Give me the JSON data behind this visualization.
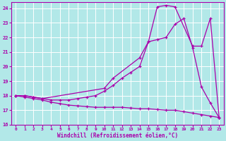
{
  "bg_color": "#b2e8e8",
  "grid_color": "#ffffff",
  "line_color": "#aa00aa",
  "marker": "+",
  "xlabel": "Windchill (Refroidissement éolien,°C)",
  "xlim": [
    -0.5,
    23.5
  ],
  "ylim": [
    16,
    24.4
  ],
  "yticks": [
    16,
    17,
    18,
    19,
    20,
    21,
    22,
    23,
    24
  ],
  "xticks": [
    0,
    1,
    2,
    3,
    4,
    5,
    6,
    7,
    8,
    9,
    10,
    11,
    12,
    13,
    14,
    15,
    16,
    17,
    18,
    19,
    20,
    21,
    22,
    23
  ],
  "line1_x": [
    0,
    1,
    2,
    3,
    4,
    5,
    6,
    7,
    8,
    9,
    10,
    11,
    12,
    13,
    14,
    15,
    16,
    17,
    18,
    19,
    20,
    21,
    22,
    23
  ],
  "line1_y": [
    18.0,
    17.9,
    17.8,
    17.7,
    17.55,
    17.45,
    17.35,
    17.3,
    17.25,
    17.2,
    17.2,
    17.2,
    17.2,
    17.15,
    17.1,
    17.1,
    17.05,
    17.0,
    17.0,
    16.9,
    16.8,
    16.7,
    16.6,
    16.5
  ],
  "line2_x": [
    0,
    1,
    2,
    3,
    4,
    5,
    6,
    7,
    8,
    9,
    10,
    11,
    12,
    13,
    14,
    15,
    16,
    17,
    18,
    19,
    20,
    21,
    22,
    23
  ],
  "line2_y": [
    18.0,
    18.0,
    17.9,
    17.8,
    17.7,
    17.7,
    17.7,
    17.8,
    17.9,
    18.0,
    18.3,
    18.7,
    19.2,
    19.6,
    20.0,
    21.7,
    21.85,
    22.0,
    22.9,
    23.3,
    21.3,
    18.6,
    17.5,
    16.5
  ],
  "line3_x": [
    0,
    1,
    2,
    3,
    10,
    11,
    14,
    15,
    16,
    17,
    18,
    20,
    21,
    22,
    23
  ],
  "line3_y": [
    18.0,
    18.0,
    17.9,
    17.8,
    18.5,
    19.2,
    20.6,
    21.7,
    24.1,
    24.2,
    24.1,
    21.4,
    21.4,
    23.3,
    16.5
  ]
}
